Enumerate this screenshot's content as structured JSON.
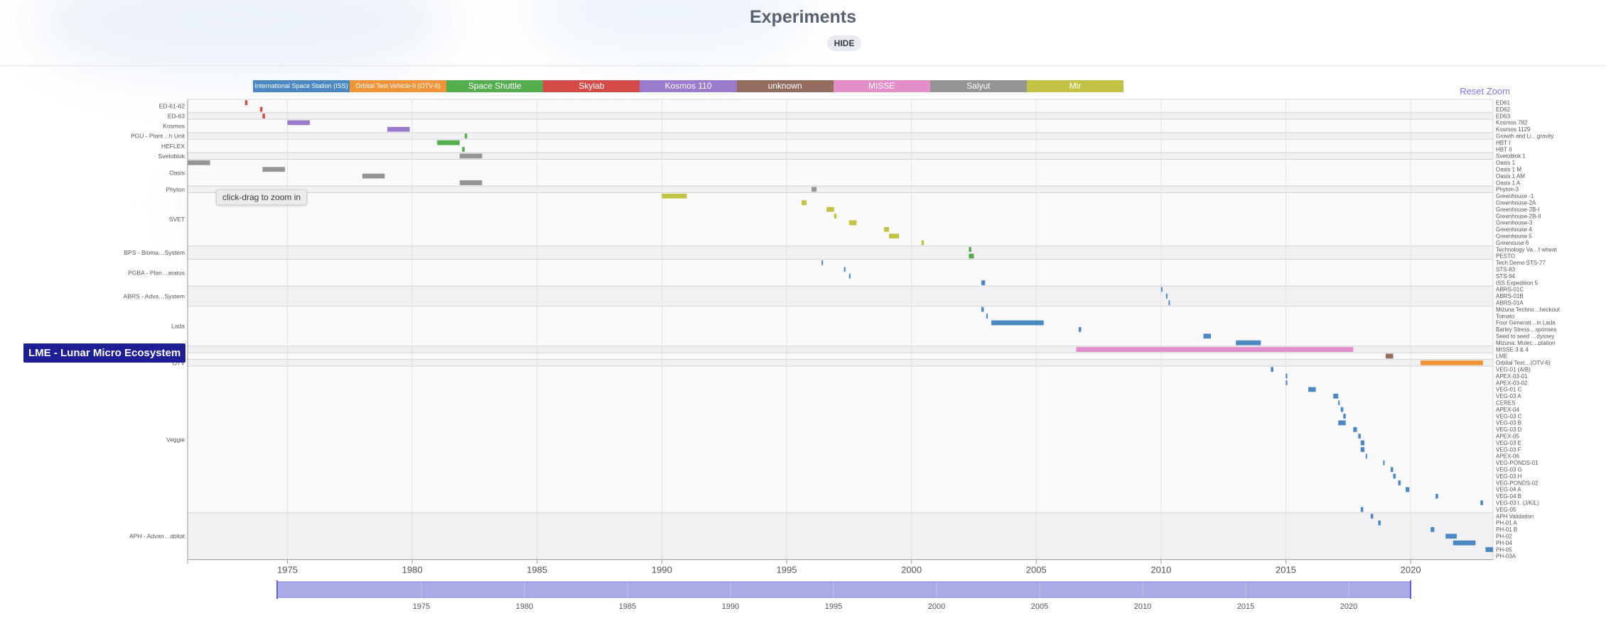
{
  "header": {
    "title": "Experiments",
    "hide_label": "HIDE"
  },
  "reset_zoom_label": "Reset Zoom",
  "tooltip_text": "click-drag to zoom in",
  "highlight_label": "LME - Lunar Micro Ecosystem",
  "colors": {
    "ISS": "#4b88c2",
    "OTV": "#f0943a",
    "Shuttle": "#54ae4e",
    "Skylab": "#d34a47",
    "Kosmos": "#9b7bcc",
    "unknown": "#946c5e",
    "MISSE": "#e38dc9",
    "Salyut": "#959595",
    "Mir": "#c2c244"
  },
  "legend": [
    {
      "key": "ISS",
      "label": "International Space Station (ISS)",
      "small": true
    },
    {
      "key": "OTV",
      "label": "Orbital Test Vehicle-6 (OTV-6)",
      "small": true
    },
    {
      "key": "Shuttle",
      "label": "Space Shuttle"
    },
    {
      "key": "Skylab",
      "label": "Skylab"
    },
    {
      "key": "Kosmos",
      "label": "Kosmos 110"
    },
    {
      "key": "unknown",
      "label": "unknown"
    },
    {
      "key": "MISSE",
      "label": "MISSE"
    },
    {
      "key": "Salyut",
      "label": "Salyut"
    },
    {
      "key": "Mir",
      "label": "Mir"
    }
  ],
  "chart_data": {
    "type": "timeline",
    "x_range": [
      1971,
      2023.3
    ],
    "x_ticks": [
      1975,
      1980,
      1985,
      1990,
      1995,
      2000,
      2005,
      2010,
      2015,
      2020
    ],
    "nav_range": [
      1968,
      2023
    ],
    "nav_ticks": [
      1975,
      1980,
      1985,
      1990,
      1995,
      2000,
      2005,
      2010,
      2015,
      2020
    ],
    "groups": [
      {
        "name": "ED-61-62",
        "rows": [
          "ED61",
          "ED62"
        ]
      },
      {
        "name": "ED-63",
        "rows": [
          "ED63"
        ]
      },
      {
        "name": "Kosmos",
        "rows": [
          "Kosmos 782",
          "Kosmos 1129"
        ]
      },
      {
        "name": "PGU - Plant…h Unit",
        "rows": [
          "Growth and Li…gravity"
        ]
      },
      {
        "name": "HEFLEX",
        "rows": [
          "HBT I",
          "HBT II"
        ]
      },
      {
        "name": "Svetoblok",
        "rows": [
          "Svetoblok 1"
        ]
      },
      {
        "name": "Oasis",
        "rows": [
          "Oasis 1",
          "Oasis 1 M",
          "Oasis 1 AM",
          "Oasis 1 A"
        ]
      },
      {
        "name": "Phyton",
        "rows": [
          "Phyton-3"
        ]
      },
      {
        "name": "SVET",
        "rows": [
          "Greenhouse -1",
          "Greenhouse-2A",
          "Greenhouse-2B-I",
          "Greenhouse-2B-II",
          "Greenhouse-3",
          "Greenhouse 4",
          "Greenhouse 5",
          "Greenouse 6"
        ]
      },
      {
        "name": "BPS - Bioma…System",
        "rows": [
          "Technology Va…f wheat",
          "PESTO"
        ]
      },
      {
        "name": "PGBA - Plan…aratus",
        "rows": [
          "Tech Demo STS-77",
          "STS-83",
          "STS-94",
          "ISS Expedition 5"
        ]
      },
      {
        "name": "ABRS - Adva…System",
        "rows": [
          "ABRS-01C",
          "ABRS-01B",
          "ABRS-01A"
        ]
      },
      {
        "name": "Lada",
        "rows": [
          "Mizuna Techno…heckout",
          "Tomato",
          "Four Generati…in Lada",
          "Barley Stress…sponses",
          "Seed to seed …dyssey",
          "Mizuna: Molec…ptation"
        ]
      },
      {
        "name": "MISSE",
        "rows": [
          "MISSE 3 & 4"
        ]
      },
      {
        "name": "LME",
        "rows": [
          "LME"
        ]
      },
      {
        "name": "OTV",
        "rows": [
          "Orbital Test…(OTV-6)"
        ]
      },
      {
        "name": "Veggie",
        "rows": [
          "VEG-01 (A/B)",
          "APEX-03-01",
          "APEX-03-02",
          "VEG-01 C",
          "VEG-03 A",
          "CERES",
          "APEX-04",
          "VEG-03 C",
          "VEG-03 B",
          "VEG-03 D",
          "APEX-05",
          "VEG-03 E",
          "VEG-03 F",
          "APEX-06",
          "VEG-PONDS-01",
          "VEG-03 G",
          "VEG-03 H",
          "VEG-PONDS-02",
          "VEG-04 A",
          "VEG-04 B",
          "VEG-03 I, (J/K/L)",
          "VEG-05"
        ]
      },
      {
        "name": "APH - Advan…abitat",
        "rows": [
          "APH Validation",
          "PH-01 A",
          "PH-01 B",
          "PH-02",
          "PH-04",
          "PH-05",
          "PH-03A"
        ]
      }
    ],
    "bars": [
      {
        "row": 0,
        "start": 1973.3,
        "end": 1973.4,
        "station": "Skylab"
      },
      {
        "row": 1,
        "start": 1973.9,
        "end": 1974.0,
        "station": "Skylab"
      },
      {
        "row": 2,
        "start": 1974.0,
        "end": 1974.1,
        "station": "Skylab"
      },
      {
        "row": 3,
        "start": 1975.0,
        "end": 1975.9,
        "station": "Kosmos"
      },
      {
        "row": 4,
        "start": 1979.0,
        "end": 1979.9,
        "station": "Kosmos"
      },
      {
        "row": 5,
        "start": 1982.1,
        "end": 1982.2,
        "station": "Shuttle"
      },
      {
        "row": 6,
        "start": 1981.0,
        "end": 1981.9,
        "station": "Shuttle"
      },
      {
        "row": 7,
        "start": 1982.0,
        "end": 1982.1,
        "station": "Shuttle"
      },
      {
        "row": 8,
        "start": 1981.9,
        "end": 1982.8,
        "station": "Salyut"
      },
      {
        "row": 9,
        "start": 1971.0,
        "end": 1971.9,
        "station": "Salyut"
      },
      {
        "row": 10,
        "start": 1974.0,
        "end": 1974.9,
        "station": "Salyut"
      },
      {
        "row": 11,
        "start": 1978.0,
        "end": 1978.9,
        "station": "Salyut"
      },
      {
        "row": 12,
        "start": 1981.9,
        "end": 1982.8,
        "station": "Salyut"
      },
      {
        "row": 13,
        "start": 1996.0,
        "end": 1996.2,
        "station": "Salyut"
      },
      {
        "row": 14,
        "start": 1990.0,
        "end": 1991.0,
        "station": "Mir"
      },
      {
        "row": 15,
        "start": 1995.6,
        "end": 1995.8,
        "station": "Mir"
      },
      {
        "row": 16,
        "start": 1996.6,
        "end": 1996.9,
        "station": "Mir"
      },
      {
        "row": 17,
        "start": 1996.9,
        "end": 1997.0,
        "station": "Mir"
      },
      {
        "row": 18,
        "start": 1997.5,
        "end": 1997.8,
        "station": "Mir"
      },
      {
        "row": 19,
        "start": 1998.9,
        "end": 1999.1,
        "station": "Mir"
      },
      {
        "row": 20,
        "start": 1999.1,
        "end": 1999.5,
        "station": "Mir"
      },
      {
        "row": 21,
        "start": 2000.4,
        "end": 2000.5,
        "station": "Mir"
      },
      {
        "row": 22,
        "start": 2002.3,
        "end": 2002.4,
        "station": "Shuttle"
      },
      {
        "row": 23,
        "start": 2002.3,
        "end": 2002.5,
        "station": "Shuttle"
      },
      {
        "row": 24,
        "start": 1996.4,
        "end": 1996.45,
        "station": "ISS"
      },
      {
        "row": 25,
        "start": 1997.3,
        "end": 1997.35,
        "station": "ISS"
      },
      {
        "row": 26,
        "start": 1997.5,
        "end": 1997.55,
        "station": "ISS"
      },
      {
        "row": 27,
        "start": 2002.8,
        "end": 2002.95,
        "station": "ISS"
      },
      {
        "row": 28,
        "start": 2010.0,
        "end": 2010.05,
        "station": "ISS"
      },
      {
        "row": 29,
        "start": 2010.2,
        "end": 2010.25,
        "station": "ISS"
      },
      {
        "row": 30,
        "start": 2010.3,
        "end": 2010.35,
        "station": "ISS"
      },
      {
        "row": 31,
        "start": 2002.8,
        "end": 2002.9,
        "station": "ISS"
      },
      {
        "row": 32,
        "start": 2003.0,
        "end": 2003.05,
        "station": "ISS"
      },
      {
        "row": 33,
        "start": 2003.2,
        "end": 2005.3,
        "station": "ISS"
      },
      {
        "row": 34,
        "start": 2006.7,
        "end": 2006.8,
        "station": "ISS"
      },
      {
        "row": 35,
        "start": 2011.7,
        "end": 2012.0,
        "station": "ISS"
      },
      {
        "row": 36,
        "start": 2013.0,
        "end": 2014.0,
        "station": "ISS"
      },
      {
        "row": 37,
        "start": 2006.6,
        "end": 2017.7,
        "station": "MISSE"
      },
      {
        "row": 38,
        "start": 2019.0,
        "end": 2019.3,
        "station": "unknown"
      },
      {
        "row": 39,
        "start": 2020.4,
        "end": 2022.9,
        "station": "OTV"
      },
      {
        "row": 40,
        "start": 2014.4,
        "end": 2014.5,
        "station": "ISS"
      },
      {
        "row": 41,
        "start": 2015.0,
        "end": 2015.05,
        "station": "ISS"
      },
      {
        "row": 42,
        "start": 2015.0,
        "end": 2015.05,
        "station": "ISS"
      },
      {
        "row": 43,
        "start": 2015.9,
        "end": 2016.2,
        "station": "ISS"
      },
      {
        "row": 44,
        "start": 2016.9,
        "end": 2017.1,
        "station": "ISS"
      },
      {
        "row": 45,
        "start": 2017.1,
        "end": 2017.15,
        "station": "ISS"
      },
      {
        "row": 46,
        "start": 2017.2,
        "end": 2017.3,
        "station": "ISS"
      },
      {
        "row": 47,
        "start": 2017.3,
        "end": 2017.4,
        "station": "ISS"
      },
      {
        "row": 48,
        "start": 2017.1,
        "end": 2017.4,
        "station": "ISS"
      },
      {
        "row": 49,
        "start": 2017.7,
        "end": 2017.85,
        "station": "ISS"
      },
      {
        "row": 50,
        "start": 2017.9,
        "end": 2018.0,
        "station": "ISS"
      },
      {
        "row": 51,
        "start": 2018.0,
        "end": 2018.15,
        "station": "ISS"
      },
      {
        "row": 52,
        "start": 2018.0,
        "end": 2018.15,
        "station": "ISS"
      },
      {
        "row": 53,
        "start": 2018.2,
        "end": 2018.25,
        "station": "ISS"
      },
      {
        "row": 54,
        "start": 2018.9,
        "end": 2018.95,
        "station": "ISS"
      },
      {
        "row": 55,
        "start": 2019.2,
        "end": 2019.3,
        "station": "ISS"
      },
      {
        "row": 56,
        "start": 2019.3,
        "end": 2019.4,
        "station": "ISS"
      },
      {
        "row": 57,
        "start": 2019.5,
        "end": 2019.6,
        "station": "ISS"
      },
      {
        "row": 58,
        "start": 2019.8,
        "end": 2019.95,
        "station": "ISS"
      },
      {
        "row": 59,
        "start": 2021.0,
        "end": 2021.1,
        "station": "ISS"
      },
      {
        "row": 60,
        "start": 2022.8,
        "end": 2022.9,
        "station": "ISS"
      },
      {
        "row": 61,
        "start": 2018.0,
        "end": 2018.1,
        "station": "ISS"
      },
      {
        "row": 62,
        "start": 2018.4,
        "end": 2018.5,
        "station": "ISS"
      },
      {
        "row": 63,
        "start": 2018.7,
        "end": 2018.8,
        "station": "ISS"
      },
      {
        "row": 64,
        "start": 2020.8,
        "end": 2020.95,
        "station": "ISS"
      },
      {
        "row": 65,
        "start": 2021.4,
        "end": 2021.85,
        "station": "ISS"
      },
      {
        "row": 66,
        "start": 2021.7,
        "end": 2022.6,
        "station": "ISS"
      },
      {
        "row": 67,
        "start": 2023.0,
        "end": 2023.3,
        "station": "ISS"
      }
    ]
  }
}
